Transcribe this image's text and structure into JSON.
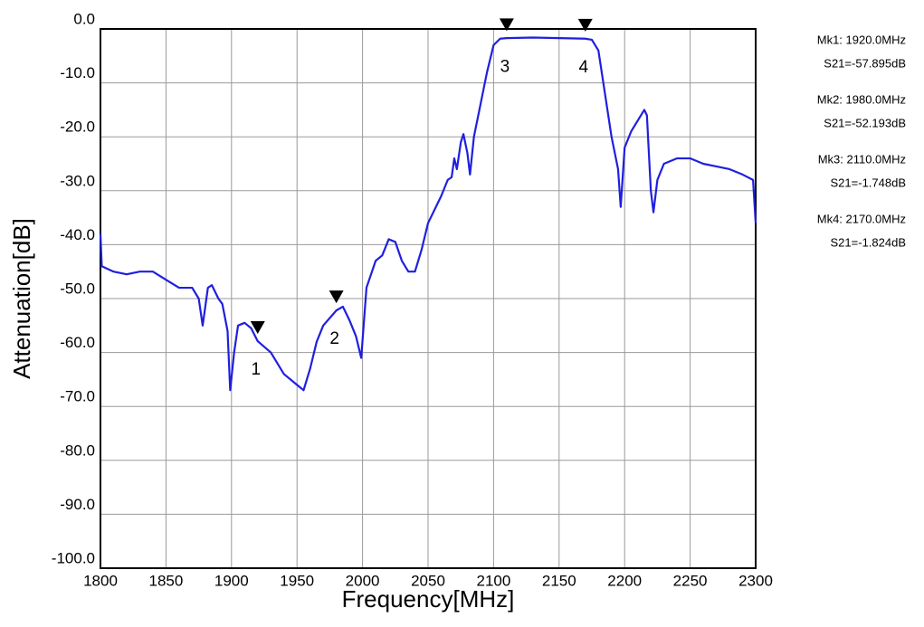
{
  "chart_data": {
    "type": "line",
    "xlabel": "Frequency[MHz]",
    "ylabel": "Attenuation[dB]",
    "xlim": [
      1800,
      2300
    ],
    "ylim": [
      -100,
      0
    ],
    "xticks": [
      1800,
      1850,
      1900,
      1950,
      2000,
      2050,
      2100,
      2150,
      2200,
      2250,
      2300
    ],
    "yticks": [
      {
        "value": 0,
        "label": "0.0"
      },
      {
        "value": -10,
        "label": "-10.0"
      },
      {
        "value": -20,
        "label": "-20.0"
      },
      {
        "value": -30,
        "label": "-30.0"
      },
      {
        "value": -40,
        "label": "-40.0"
      },
      {
        "value": -50,
        "label": "-50.0"
      },
      {
        "value": -60,
        "label": "-60.0"
      },
      {
        "value": -70,
        "label": "-70.0"
      },
      {
        "value": -80,
        "label": "-80.0"
      },
      {
        "value": -90,
        "label": "-90.0"
      },
      {
        "value": -100,
        "label": "-100.0"
      }
    ],
    "grid": true,
    "series": [
      {
        "name": "S21",
        "color": "#1f1fe0",
        "x": [
          1800,
          1801,
          1810,
          1820,
          1830,
          1840,
          1850,
          1860,
          1870,
          1875,
          1878,
          1882,
          1885,
          1890,
          1893,
          1897,
          1899,
          1902,
          1905,
          1910,
          1915,
          1920,
          1930,
          1940,
          1950,
          1955,
          1960,
          1965,
          1970,
          1980,
          1985,
          1990,
          1995,
          1999,
          2003,
          2010,
          2015,
          2020,
          2025,
          2030,
          2035,
          2040,
          2045,
          2050,
          2060,
          2065,
          2068,
          2070,
          2072,
          2075,
          2077,
          2080,
          2082,
          2085,
          2090,
          2095,
          2100,
          2105,
          2110,
          2130,
          2150,
          2170,
          2175,
          2180,
          2185,
          2190,
          2195,
          2197,
          2200,
          2205,
          2210,
          2215,
          2217,
          2220,
          2222,
          2225,
          2230,
          2240,
          2250,
          2260,
          2270,
          2280,
          2290,
          2298,
          2300
        ],
        "values": [
          -38,
          -44,
          -45,
          -45.5,
          -45,
          -45,
          -46.5,
          -48,
          -48,
          -50,
          -55,
          -48,
          -47.5,
          -50,
          -51,
          -56,
          -67,
          -60,
          -55,
          -54.5,
          -55.5,
          -57.9,
          -60,
          -64,
          -66,
          -67,
          -63,
          -58,
          -55,
          -52.2,
          -51.5,
          -54,
          -57,
          -61,
          -48,
          -43,
          -42,
          -39,
          -39.5,
          -43,
          -45,
          -45,
          -41,
          -36,
          -31,
          -28,
          -27.5,
          -24,
          -26,
          -21,
          -19.5,
          -23,
          -27,
          -20,
          -14,
          -8,
          -3,
          -1.8,
          -1.7,
          -1.6,
          -1.7,
          -1.8,
          -2,
          -4,
          -12,
          -20,
          -26,
          -33,
          -22,
          -19,
          -17,
          -15,
          -16,
          -30,
          -34,
          -28,
          -25,
          -24,
          -24,
          -25,
          -25.5,
          -26,
          -27,
          -28,
          -36
        ]
      }
    ],
    "markers": [
      {
        "label": "1",
        "x": 1920,
        "y": -57.895,
        "freq_text": "Mk1: 1920.0MHz",
        "value_text": "S21=-57.895dB"
      },
      {
        "label": "2",
        "x": 1980,
        "y": -52.193,
        "freq_text": "Mk2: 1980.0MHz",
        "value_text": "S21=-52.193dB"
      },
      {
        "label": "3",
        "x": 2110,
        "y": -1.748,
        "freq_text": "Mk3: 2110.0MHz",
        "value_text": "S21=-1.748dB"
      },
      {
        "label": "4",
        "x": 2170,
        "y": -1.824,
        "freq_text": "Mk4: 2170.0MHz",
        "value_text": "S21=-1.824dB"
      }
    ]
  }
}
